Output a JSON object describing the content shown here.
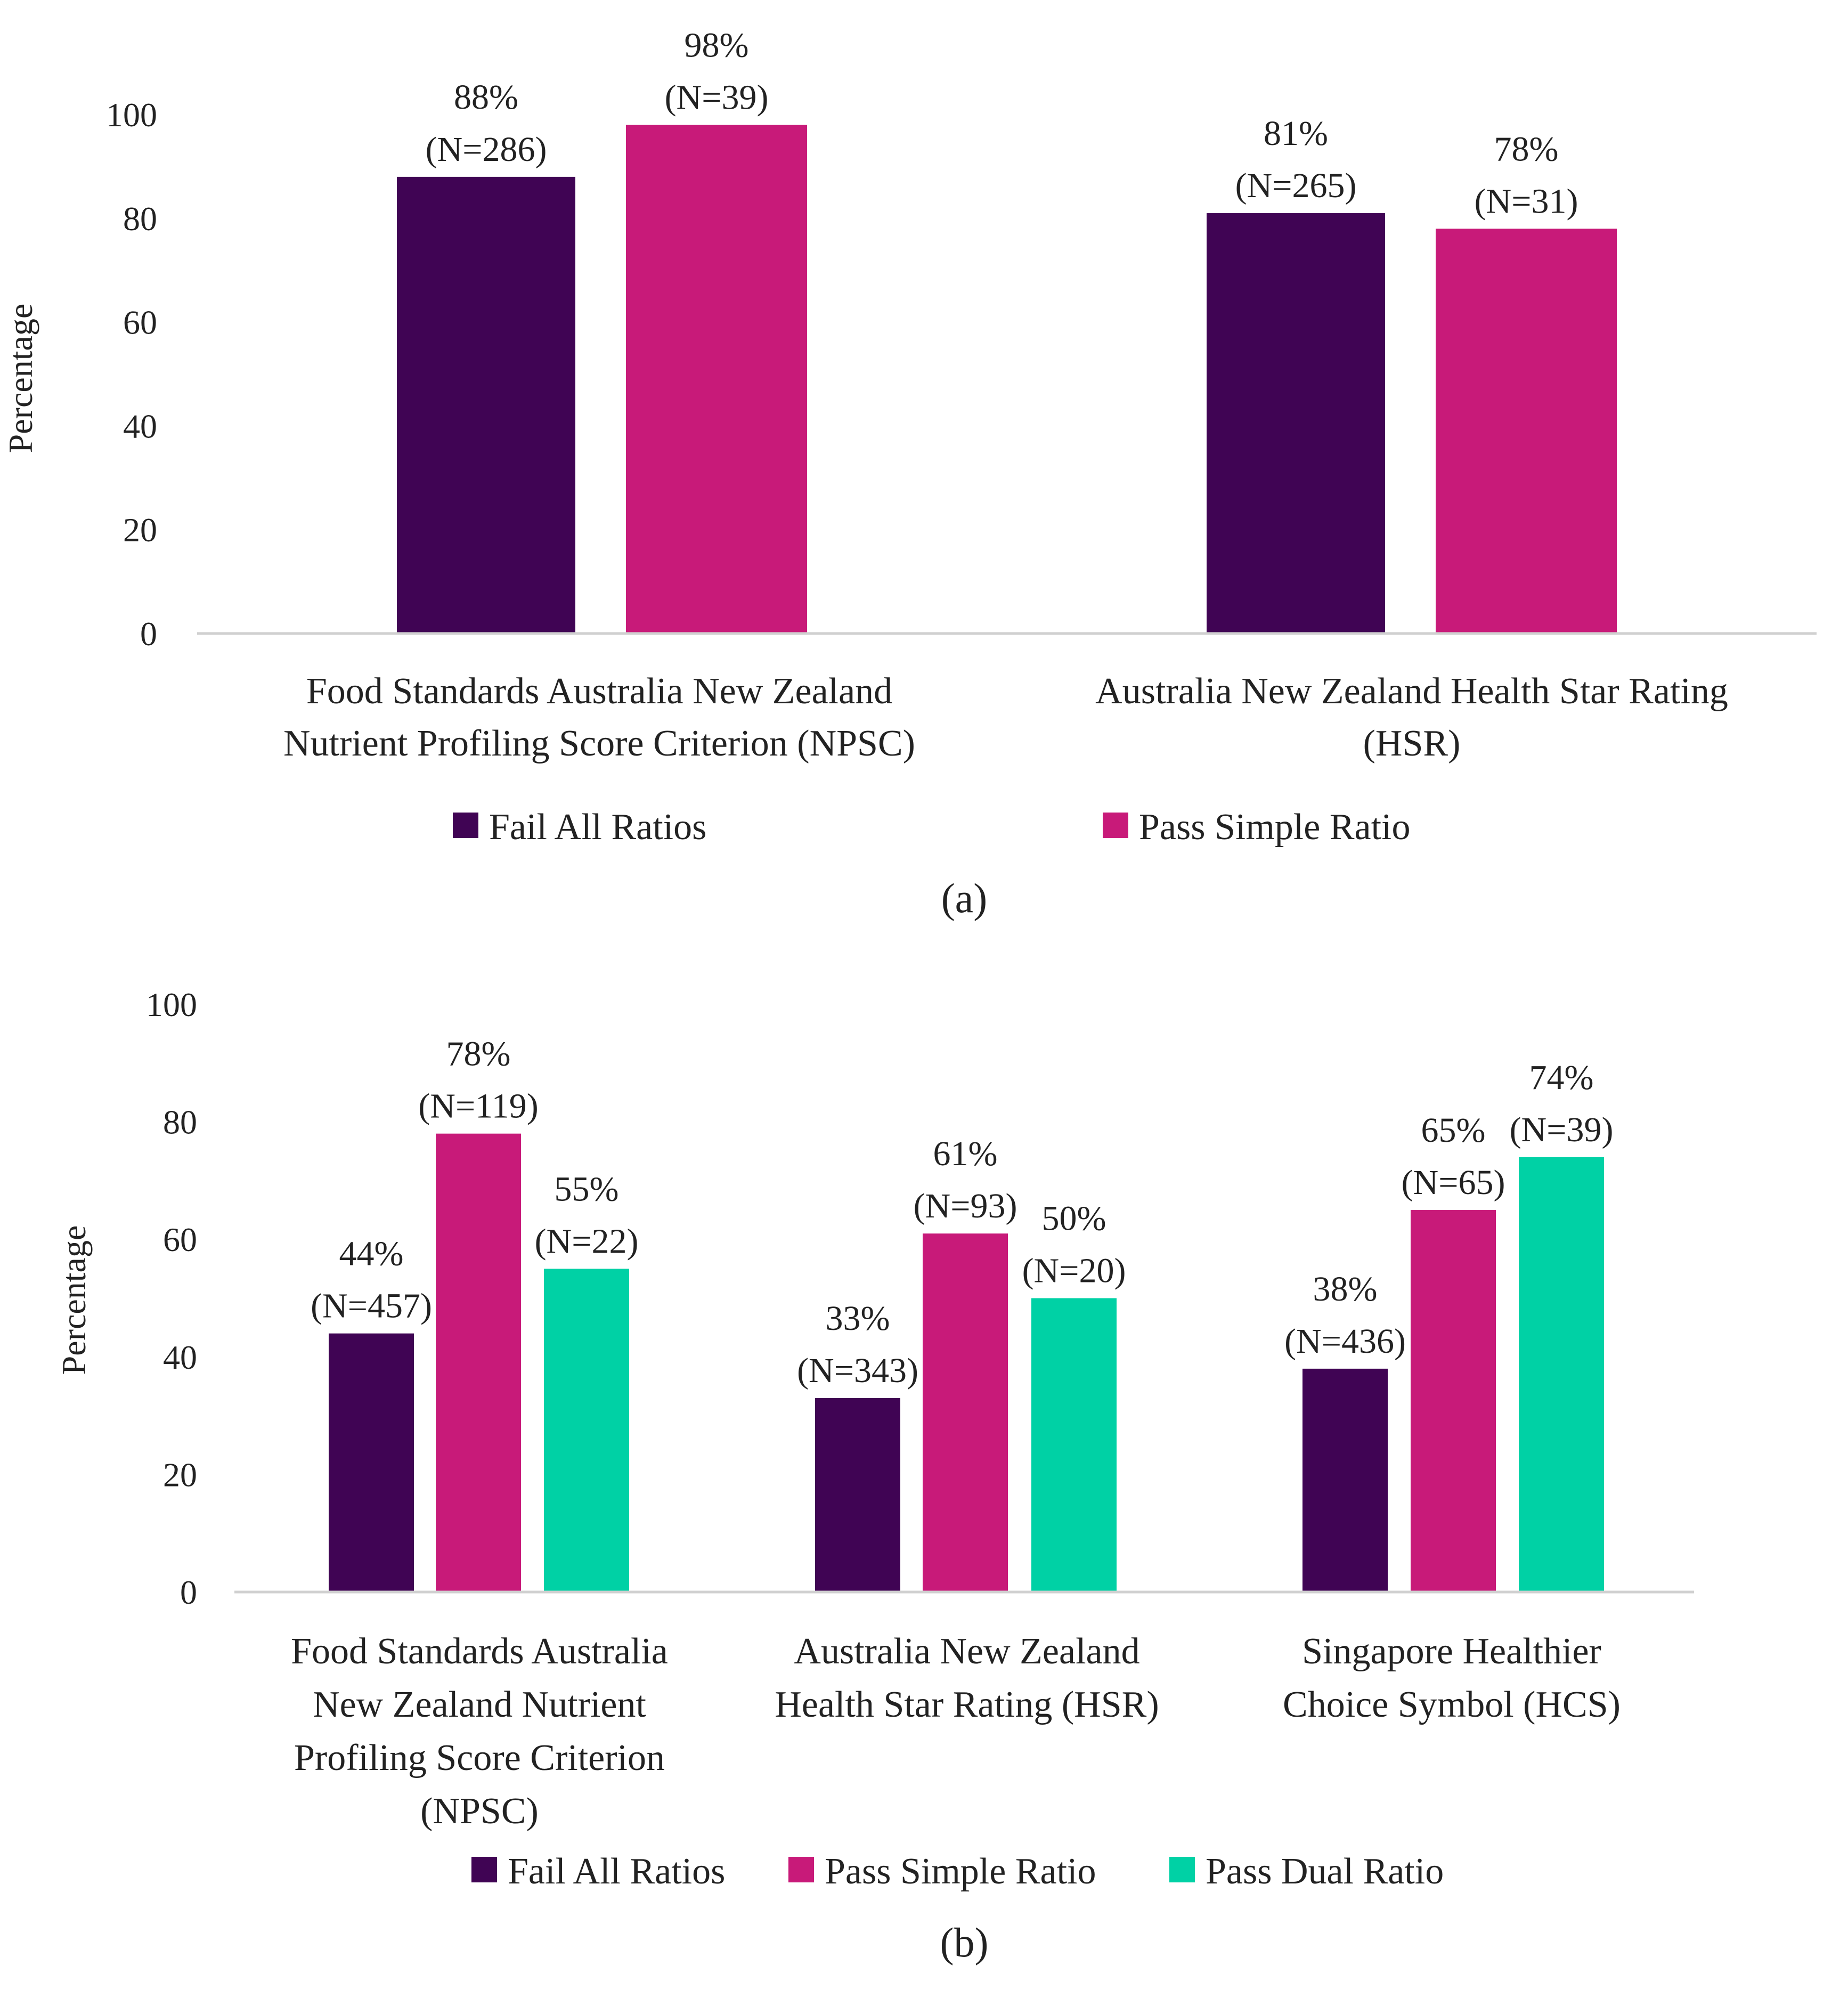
{
  "colors": {
    "fail_all": "#400454",
    "pass_simple": "#c81a79",
    "pass_dual": "#00d1a5"
  },
  "chart_data": [
    {
      "type": "bar",
      "panel_label": "(a)",
      "ylabel": "Percentage",
      "ylim": [
        0,
        100
      ],
      "yticks": [
        "0",
        "20",
        "40",
        "60",
        "80",
        "100"
      ],
      "categories": [
        [
          "Food Standards Australia New Zealand",
          "Nutrient Profiling Score Criterion (NPSC)"
        ],
        [
          "Australia New Zealand Health Star Rating",
          "(HSR)"
        ]
      ],
      "series": [
        {
          "name": "Fail All Ratios",
          "values": [
            88,
            81
          ],
          "labels": [
            [
              "88%",
              "(N=286)"
            ],
            [
              "81%",
              "(N=265)"
            ]
          ]
        },
        {
          "name": "Pass Simple Ratio",
          "values": [
            98,
            78
          ],
          "labels": [
            [
              "98%",
              "(N=39)"
            ],
            [
              "78%",
              "(N=31)"
            ]
          ]
        }
      ],
      "legend": [
        "Fail All Ratios",
        "Pass Simple Ratio"
      ]
    },
    {
      "type": "bar",
      "panel_label": "(b)",
      "ylabel": "Percentage",
      "ylim": [
        0,
        100
      ],
      "yticks": [
        "0",
        "20",
        "40",
        "60",
        "80",
        "100"
      ],
      "categories": [
        [
          "Food Standards Australia",
          "New Zealand Nutrient",
          "Profiling Score Criterion",
          "(NPSC)"
        ],
        [
          "Australia New Zealand",
          "Health Star Rating (HSR)"
        ],
        [
          "Singapore Healthier",
          "Choice Symbol (HCS)"
        ]
      ],
      "series": [
        {
          "name": "Fail All Ratios",
          "values": [
            44,
            33,
            38
          ],
          "labels": [
            [
              "44%",
              "(N=457)"
            ],
            [
              "33%",
              "(N=343)"
            ],
            [
              "38%",
              "(N=436)"
            ]
          ]
        },
        {
          "name": "Pass Simple Ratio",
          "values": [
            78,
            61,
            65
          ],
          "labels": [
            [
              "78%",
              "(N=119)"
            ],
            [
              "61%",
              "(N=93)"
            ],
            [
              "65%",
              "(N=65)"
            ]
          ]
        },
        {
          "name": "Pass Dual Ratio",
          "values": [
            55,
            50,
            74
          ],
          "labels": [
            [
              "55%",
              "(N=22)"
            ],
            [
              "50%",
              "(N=20)"
            ],
            [
              "74%",
              "(N=39)"
            ]
          ]
        }
      ],
      "legend": [
        "Fail All Ratios",
        "Pass Simple Ratio",
        "Pass Dual Ratio"
      ]
    }
  ]
}
